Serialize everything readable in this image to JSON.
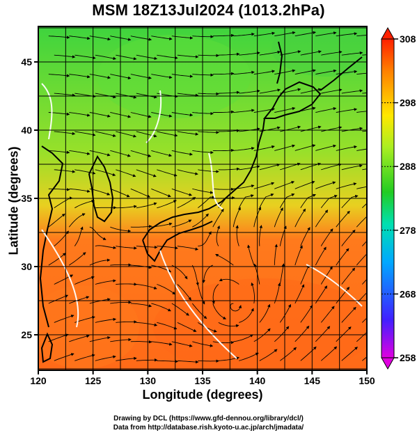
{
  "title": "MSM 18Z13Jul2024 (1013.2hPa)",
  "axes": {
    "xlabel": "Longitude (degrees)",
    "ylabel": "Latitude  (degrees)",
    "x_ticks": [
      "120",
      "125",
      "130",
      "135",
      "140",
      "145",
      "150"
    ],
    "y_ticks": [
      "25",
      "30",
      "35",
      "40",
      "45"
    ],
    "xlim": [
      120,
      150
    ],
    "ylim": [
      22.4,
      47.6
    ]
  },
  "colorbar": {
    "ticks": [
      "308",
      "298",
      "288",
      "278",
      "268",
      "258"
    ],
    "range": [
      258,
      308
    ],
    "colors": [
      "#e000e0",
      "#1a1aff",
      "#00aaff",
      "#00e0a0",
      "#22cc22",
      "#aaee22",
      "#ffee00",
      "#ff8800",
      "#ff2200"
    ]
  },
  "field": {
    "north_color": "#3ed43e",
    "mid_color": "#96e02a",
    "south_color": "#ff7a1c"
  },
  "credits": {
    "line1": "Drawing by DCL (https://www.gfd-dennou.org/library/dcl/)",
    "line2": "Data from http://database.rish.kyoto-u.ac.jp/arch/jmadata/"
  }
}
